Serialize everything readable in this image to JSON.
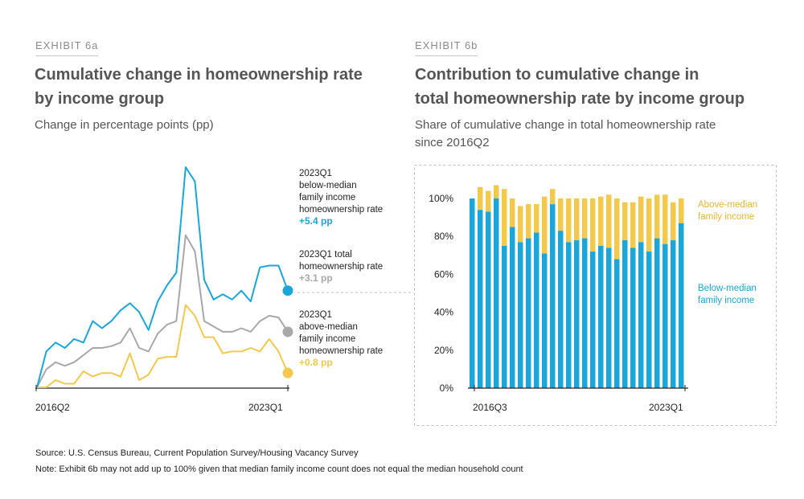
{
  "exhibit_a": {
    "label": "EXHIBIT 6a",
    "title_line1": "Cumulative change in homeownership rate",
    "title_line2": "by income group",
    "subtitle": "Change in percentage points (pp)"
  },
  "exhibit_b": {
    "label": "EXHIBIT 6b",
    "title_line1": "Contribution to cumulative change in",
    "title_line2": "total homeownership rate by income group",
    "subtitle_line1": "Share of cumulative change in total homeownership rate",
    "subtitle_line2": "since 2016Q2"
  },
  "colors": {
    "below": "#1aa6d9",
    "total": "#a8a8a8",
    "above": "#f2c94c"
  },
  "footer": {
    "source": "Source: U.S. Census Bureau, Current Population Survey/Housing Vacancy Survey",
    "note": "Note: Exhibit 6b may not add up to 100% given that median family income count does not equal the median household count"
  },
  "chart_data": [
    {
      "type": "line",
      "x_start_label": "2016Q2",
      "x_end_label": "2023Q1",
      "ylim": [
        0,
        12.3
      ],
      "series": [
        {
          "name": "below-median",
          "color": "#1aa6d9",
          "values": [
            0.0,
            2.0,
            2.5,
            2.2,
            2.7,
            2.5,
            3.7,
            3.3,
            3.7,
            4.3,
            4.7,
            4.2,
            3.2,
            4.8,
            5.7,
            6.4,
            12.3,
            11.5,
            6.0,
            4.9,
            5.2,
            4.9,
            5.4,
            4.8,
            6.7,
            6.8,
            6.8,
            5.4
          ]
        },
        {
          "name": "total",
          "color": "#a8a8a8",
          "values": [
            0.0,
            1.0,
            1.4,
            1.2,
            1.4,
            1.8,
            2.2,
            2.2,
            2.3,
            2.5,
            3.3,
            2.2,
            2.0,
            3.0,
            3.5,
            3.7,
            8.5,
            7.6,
            3.7,
            3.4,
            3.1,
            3.1,
            3.3,
            3.1,
            3.7,
            4.0,
            3.9,
            3.1
          ]
        },
        {
          "name": "above-median",
          "color": "#f2c94c",
          "values": [
            0.0,
            0.0,
            0.4,
            0.2,
            0.2,
            0.9,
            0.6,
            0.8,
            0.8,
            0.6,
            1.9,
            0.4,
            0.7,
            1.6,
            1.7,
            1.7,
            4.6,
            4.0,
            2.8,
            2.8,
            1.9,
            2.0,
            2.0,
            2.2,
            2.0,
            2.7,
            2.0,
            0.8
          ]
        }
      ],
      "annotations": [
        {
          "lines": [
            "2023Q1",
            "below-median",
            "family income",
            "homeownership rate"
          ],
          "value": "+5.4 pp",
          "color": "#1aa6d9"
        },
        {
          "lines": [
            "2023Q1 total",
            "homeownership rate"
          ],
          "value": "+3.1 pp",
          "color": "#a8a8a8"
        },
        {
          "lines": [
            "2023Q1",
            "above-median",
            "family income",
            "homeownership rate"
          ],
          "value": "+0.8 pp",
          "color": "#f2c94c"
        }
      ]
    },
    {
      "type": "bar",
      "stacked": true,
      "x_start_label": "2016Q3",
      "x_end_label": "2023Q1",
      "yticks": [
        "100%",
        "80%",
        "60%",
        "40%",
        "20%",
        "0%"
      ],
      "ylim": [
        0,
        100
      ],
      "series": [
        {
          "name": "Below-median family income",
          "color": "#1aa6d9",
          "values": [
            100,
            94,
            93,
            100,
            75,
            85,
            77,
            79,
            82,
            71,
            97,
            83,
            77,
            78,
            79,
            72,
            75,
            74,
            68,
            78,
            74,
            77,
            72,
            79,
            76,
            78,
            87
          ]
        },
        {
          "name": "Above-median family income",
          "color": "#f2c94c",
          "values": [
            0,
            12,
            11,
            7,
            30,
            15,
            19,
            18,
            15,
            30,
            8,
            17,
            23,
            22,
            21,
            28,
            26,
            28,
            32,
            20,
            24,
            24,
            28,
            23,
            26,
            20,
            13
          ]
        }
      ],
      "legend": [
        {
          "line1": "Above-median",
          "line2": "family income",
          "color": "#e9b531"
        },
        {
          "line1": "Below-median",
          "line2": "family income",
          "color": "#1aa6d9"
        }
      ]
    }
  ]
}
